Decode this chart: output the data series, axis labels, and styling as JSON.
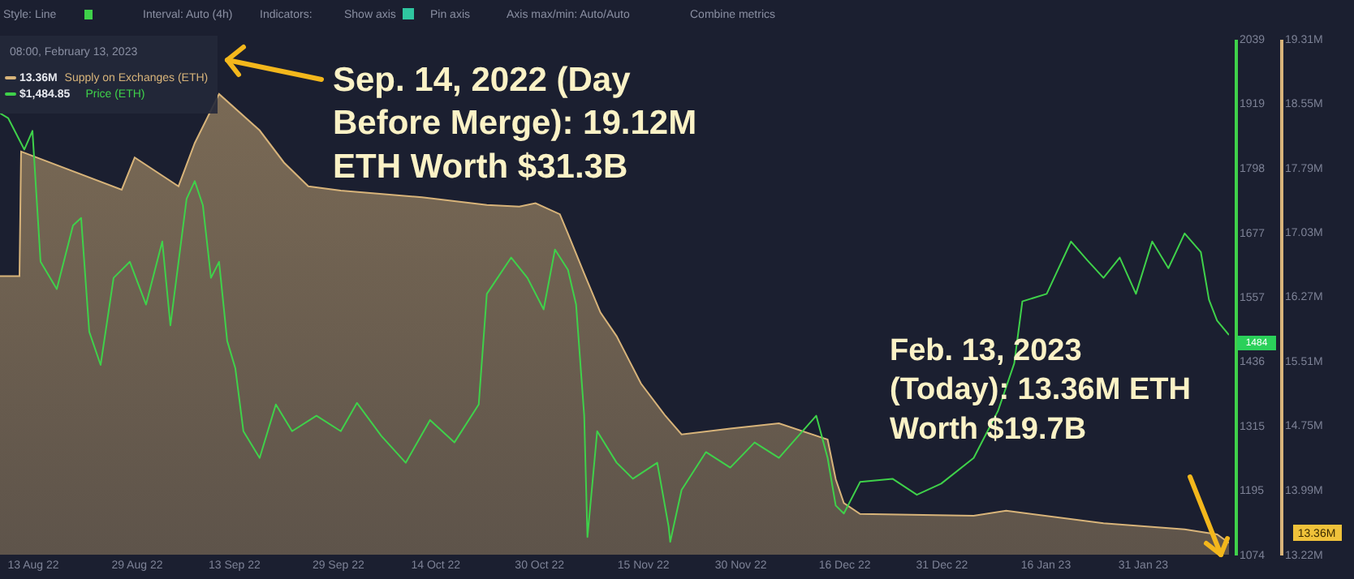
{
  "chart_data": {
    "type": "line",
    "legend": "top left",
    "grid": false,
    "xlim": [
      "2022-08-08",
      "2023-02-13T08:00"
    ],
    "xticks": [
      {
        "value": "2022-08-13",
        "label": "13 Aug 22"
      },
      {
        "value": "2022-08-29",
        "label": "29 Aug 22"
      },
      {
        "value": "2022-09-13",
        "label": "13 Sep 22"
      },
      {
        "value": "2022-09-29",
        "label": "29 Sep 22"
      },
      {
        "value": "2022-10-14",
        "label": "14 Oct 22"
      },
      {
        "value": "2022-10-30",
        "label": "30 Oct 22"
      },
      {
        "value": "2022-11-15",
        "label": "15 Nov 22"
      },
      {
        "value": "2022-11-30",
        "label": "30 Nov 22"
      },
      {
        "value": "2022-12-16",
        "label": "16 Dec 22"
      },
      {
        "value": "2022-12-31",
        "label": "31 Dec 22"
      },
      {
        "value": "2023-01-16",
        "label": "16 Jan 23"
      },
      {
        "value": "2023-01-31",
        "label": "31 Jan 23"
      }
    ],
    "y2lim": [
      1074,
      2039
    ],
    "y2ticks": [
      1074,
      1195,
      1315,
      1436,
      1557,
      1677,
      1798,
      1919,
      2039
    ],
    "ylim": [
      13.22,
      19.31
    ],
    "yticks": [
      {
        "value": 13.22,
        "label": "13.22M"
      },
      {
        "value": 13.99,
        "label": "13.99M"
      },
      {
        "value": 14.75,
        "label": "14.75M"
      },
      {
        "value": 15.51,
        "label": "15.51M"
      },
      {
        "value": 16.27,
        "label": "16.27M"
      },
      {
        "value": 17.03,
        "label": "17.03M"
      },
      {
        "value": 17.79,
        "label": "17.79M"
      },
      {
        "value": 18.55,
        "label": "18.55M"
      },
      {
        "value": 19.31,
        "label": "19.31M"
      }
    ],
    "series": [
      {
        "name": "Supply on Exchanges (ETH)",
        "type": "area",
        "color": "#d8b47a",
        "x": [
          "2022-08-08",
          "2022-08-11",
          "2022-08-11T06:00",
          "2022-08-26T18:00",
          "2022-08-28T18:00",
          "2022-09-04T12:00",
          "2022-09-07",
          "2022-09-10T18:00",
          "2022-09-17",
          "2022-09-20T18:00",
          "2022-09-24T12:00",
          "2022-09-29T12:00",
          "2022-10-12",
          "2022-10-22",
          "2022-10-27",
          "2022-10-29T12:00",
          "2022-11-02T06:00",
          "2022-11-03T12:00",
          "2022-11-06",
          "2022-11-08T12:00",
          "2022-11-11",
          "2022-11-14T18:00",
          "2022-11-18T12:00",
          "2022-11-21",
          "2022-11-28T12:00",
          "2022-12-06",
          "2022-12-13T12:00",
          "2022-12-14T18:00",
          "2022-12-16",
          "2022-12-18T12:00",
          "2023-01-05",
          "2023-01-10",
          "2023-01-25",
          "2023-02-06T12:00",
          "2023-02-11T12:00",
          "2023-02-13T08:00"
        ],
        "values": [
          16.51,
          16.51,
          17.98,
          17.53,
          17.91,
          17.57,
          18.08,
          18.66,
          18.23,
          17.85,
          17.57,
          17.52,
          17.44,
          17.35,
          17.33,
          17.37,
          17.24,
          17.01,
          16.54,
          16.08,
          15.8,
          15.24,
          14.86,
          14.64,
          14.71,
          14.77,
          14.58,
          14.11,
          13.83,
          13.7,
          13.68,
          13.74,
          13.59,
          13.52,
          13.46,
          13.36
        ]
      },
      {
        "name": "Price (ETH)",
        "axis": "y2",
        "color": "#3fd14a",
        "x": [
          "2022-08-08",
          "2022-08-09T06:00",
          "2022-08-11T18:00",
          "2022-08-13",
          "2022-08-14T06:00",
          "2022-08-16T18:00",
          "2022-08-19T06:00",
          "2022-08-20T12:00",
          "2022-08-21T18:00",
          "2022-08-23T12:00",
          "2022-08-25T12:00",
          "2022-08-28",
          "2022-08-30T12:00",
          "2022-09-02",
          "2022-09-03T06:00",
          "2022-09-05T18:00",
          "2022-09-07",
          "2022-09-08T06:00",
          "2022-09-09T12:00",
          "2022-09-10T18:00",
          "2022-09-12",
          "2022-09-13T06:00",
          "2022-09-14T12:00",
          "2022-09-17",
          "2022-09-19T12:00",
          "2022-09-22",
          "2022-09-25T18:00",
          "2022-09-29T12:00",
          "2022-10-02",
          "2022-10-05T18:00",
          "2022-10-09T12:00",
          "2022-10-13T06:00",
          "2022-10-17",
          "2022-10-20T18:00",
          "2022-10-22",
          "2022-10-25T18:00",
          "2022-10-28T06:00",
          "2022-10-30T18:00",
          "2022-11-01T12:00",
          "2022-11-03T12:00",
          "2022-11-04T18:00",
          "2022-11-06",
          "2022-11-06T12:00",
          "2022-11-08",
          "2022-11-11",
          "2022-11-13T12:00",
          "2022-11-17T06:00",
          "2022-11-19",
          "2022-11-19T06:00",
          "2022-11-21",
          "2022-11-24T18:00",
          "2022-11-28T12:00",
          "2022-12-02T06:00",
          "2022-12-06",
          "2022-12-11T18:00",
          "2022-12-13T12:00",
          "2022-12-14T18:00",
          "2022-12-16",
          "2022-12-18T12:00",
          "2022-12-23T12:00",
          "2022-12-27T06:00",
          "2022-12-31",
          "2023-01-05",
          "2023-01-08T18:00",
          "2023-01-11T06:00",
          "2023-01-12T12:00",
          "2023-01-16T06:00",
          "2023-01-20",
          "2023-01-22T12:00",
          "2023-01-25",
          "2023-01-27T12:00",
          "2023-01-30",
          "2023-02-01T12:00",
          "2023-02-04",
          "2023-02-06T12:00",
          "2023-02-09",
          "2023-02-10T06:00",
          "2023-02-11T12:00",
          "2023-02-13T08:00"
        ],
        "values": [
          1900,
          1891,
          1832,
          1867,
          1622,
          1571,
          1690,
          1704,
          1491,
          1429,
          1592,
          1622,
          1542,
          1660,
          1503,
          1740,
          1773,
          1728,
          1592,
          1622,
          1474,
          1423,
          1305,
          1255,
          1355,
          1305,
          1334,
          1305,
          1358,
          1296,
          1246,
          1326,
          1284,
          1355,
          1562,
          1630,
          1592,
          1533,
          1645,
          1607,
          1542,
          1334,
          1107,
          1305,
          1246,
          1216,
          1246,
          1127,
          1098,
          1195,
          1266,
          1237,
          1284,
          1255,
          1334,
          1255,
          1166,
          1151,
          1210,
          1216,
          1186,
          1207,
          1255,
          1343,
          1432,
          1548,
          1562,
          1660,
          1625,
          1592,
          1630,
          1562,
          1660,
          1610,
          1675,
          1640,
          1551,
          1512,
          1485
        ]
      }
    ],
    "annotations": [
      "Style: Line",
      "Interval: Auto (4h)",
      "Indicators:",
      "Show axis",
      "Pin axis",
      "Axis max/min: Auto/Auto",
      "Combine metrics",
      "08:00, February 13, 2023",
      "13.36M",
      "$1,484.85",
      "Sep. 14, 2022 (Day\nBefore Merge): 19.12M\nETH Worth $31.3B",
      "Feb. 13, 2023\n(Today): 13.36M ETH\nWorth $19.7B",
      "1484",
      "13.36M"
    ]
  }
}
